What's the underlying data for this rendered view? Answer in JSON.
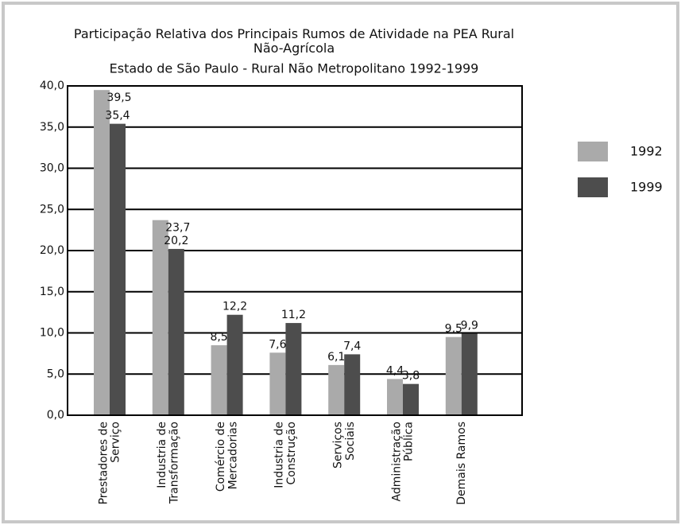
{
  "chart_data": {
    "type": "bar",
    "title": "Participação Relativa dos Principais Rumos de Atividade na PEA Rural\nNão-Agrícola",
    "subtitle": "Estado de São Paulo - Rural Não Metropolitano 1992-1999",
    "categories": [
      "Prestadores de\nServiço",
      "Industria de\nTransformação",
      "Comércio de\nMercadorias",
      "Industria de\nConstrução",
      "Serviços\nSociais",
      "Administração\nPública",
      "Demais Ramos"
    ],
    "series": [
      {
        "name": "1992",
        "color": "#aaaaaa",
        "values": [
          39.5,
          23.7,
          8.5,
          7.6,
          6.1,
          4.4,
          9.5
        ],
        "value_labels": [
          "39,5",
          "23,7",
          "8,5",
          "7,6",
          "6,1",
          "4,4",
          "9,5"
        ]
      },
      {
        "name": "1999",
        "color": "#4d4d4d",
        "values": [
          35.4,
          20.2,
          12.2,
          11.2,
          7.4,
          3.8,
          9.9
        ],
        "value_labels": [
          "35,4",
          "20,2",
          "12,2",
          "11,2",
          "7,4",
          "3,8",
          "9,9"
        ]
      }
    ],
    "ylim": [
      0,
      40
    ],
    "yticks": [
      {
        "value": 0,
        "label": "0,0"
      },
      {
        "value": 5,
        "label": "5,0"
      },
      {
        "value": 10,
        "label": "10,0"
      },
      {
        "value": 15,
        "label": "15,0"
      },
      {
        "value": 20,
        "label": "20,0"
      },
      {
        "value": 25,
        "label": "25,0"
      },
      {
        "value": 30,
        "label": "30,0"
      },
      {
        "value": 35,
        "label": "35,0"
      },
      {
        "value": 40,
        "label": "40,0"
      }
    ],
    "grid": true,
    "legend": "right"
  }
}
